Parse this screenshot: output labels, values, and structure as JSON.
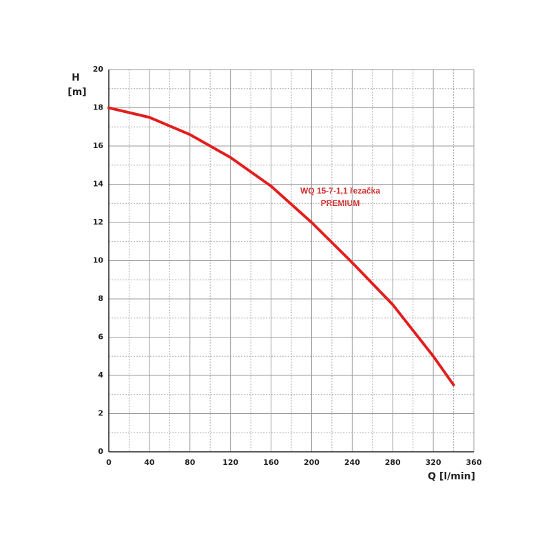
{
  "chart_data": {
    "type": "line",
    "y_label": [
      "H",
      "[m]"
    ],
    "x_label": "Q [l/min]",
    "annotation": [
      "WQ 15-7-1,1 řezačka",
      "PREMIUM"
    ],
    "x": [
      0,
      40,
      80,
      120,
      160,
      200,
      240,
      280,
      320,
      340
    ],
    "series": [
      {
        "name": "WQ 15-7-1,1 řezačka PREMIUM",
        "color": "#e31e1e",
        "values": [
          18,
          17.5,
          16.6,
          15.4,
          13.9,
          12.0,
          9.9,
          7.7,
          5.0,
          3.5
        ]
      }
    ],
    "xlim": [
      0,
      360
    ],
    "xticks": [
      0,
      40,
      80,
      120,
      160,
      200,
      240,
      280,
      320,
      360
    ],
    "ylim": [
      0,
      20
    ],
    "yticks": [
      0,
      2,
      4,
      6,
      8,
      10,
      12,
      14,
      16,
      18,
      20
    ],
    "x_minor_grid": [
      20,
      60,
      100,
      140,
      180,
      220,
      260,
      300,
      340
    ],
    "y_minor_grid": [
      1,
      3,
      5,
      7,
      9,
      11,
      13,
      15,
      17,
      19
    ],
    "grid": true
  }
}
